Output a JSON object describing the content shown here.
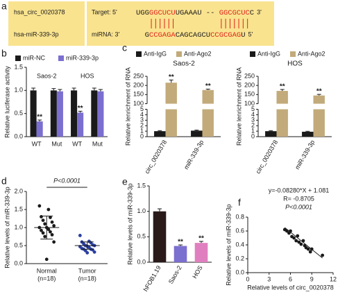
{
  "panel_a": {
    "label": "a",
    "names": [
      "hsa_circ_0020378",
      "hsa-miR-339-3p"
    ],
    "pair_color": "#e0231b",
    "rows": [
      {
        "prefix": "Target: 5'",
        "suffix": "3'",
        "segments": [
          {
            "text": "UGG",
            "color": "#1a1a1a"
          },
          {
            "text": "GGCUCU",
            "color": "#e0231b"
          },
          {
            "text": "UGAAAU -- ",
            "color": "#1a1a1a"
          },
          {
            "text": "GGCGCUC",
            "color": "#e0231b"
          },
          {
            "text": "C",
            "color": "#1a1a1a"
          }
        ]
      },
      {
        "prefix": "miRNA: 3'",
        "suffix": "5'",
        "segments": [
          {
            "text": "G",
            "color": "#1a1a1a"
          },
          {
            "text": "CCGAGA",
            "color": "#e0231b"
          },
          {
            "text": "CAGCAGCU",
            "color": "#1a1a1a"
          },
          {
            "text": "CCGCGAG",
            "color": "#e0231b"
          },
          {
            "text": "U",
            "color": "#1a1a1a"
          }
        ]
      }
    ]
  },
  "chart_data": [
    {
      "panel_label": "b",
      "type": "bar",
      "y_label": "Relative luciferase activity",
      "categories": [
        "WT",
        "Mut",
        "WT",
        "Mut"
      ],
      "groups": [
        "Saos-2",
        "HOS"
      ],
      "series": [
        {
          "name": "miR-NC",
          "color": "#1a1a1a",
          "values": [
            1,
            1,
            1,
            1
          ],
          "errors": [
            0.05,
            0.04,
            0.05,
            0.05
          ]
        },
        {
          "name": "miR-339-3p",
          "color": "#7b6fd0",
          "values": [
            0.33,
            0.98,
            0.52,
            0.98
          ],
          "errors": [
            0.03,
            0.04,
            0.03,
            0.04
          ],
          "annotations": [
            "**",
            null,
            "**",
            null
          ]
        }
      ],
      "ylim": [
        0,
        1.5
      ],
      "yticks": [
        {
          "value": 0,
          "label": "0.0"
        },
        {
          "value": 0.5,
          "label": "0.5"
        },
        {
          "value": 1,
          "label": "1.0"
        },
        {
          "value": 1.5,
          "label": "1.5"
        }
      ],
      "legend": "top"
    },
    {
      "panel_label": "c",
      "type": "bar",
      "title": "Saos-2",
      "y_label": "Relative lenrichment of RNA",
      "categories": [
        "circ_0020378",
        "miR-339-3p"
      ],
      "series": [
        {
          "name": "Anti-IgG",
          "color": "#1a1a1a",
          "values": [
            1,
            1.1
          ],
          "errors": [
            0.1,
            0.1
          ]
        },
        {
          "name": "Anti-Ago2",
          "color": "#c2aa7a",
          "values": [
            215,
            175
          ],
          "errors": [
            15,
            5
          ],
          "annotations": [
            "**",
            "**"
          ]
        }
      ],
      "ylim": [
        0,
        250
      ],
      "axis_break": [
        5,
        100
      ],
      "yticks": [
        0,
        1,
        2,
        3,
        4,
        5,
        100,
        150,
        200,
        250
      ],
      "legend": "top"
    },
    {
      "type": "bar",
      "title": "HOS",
      "y_label": "Relative lenrichment of RNA",
      "categories": [
        "circ_0020378",
        "miR-339-3p"
      ],
      "series": [
        {
          "name": "Anti-IgG",
          "color": "#1a1a1a",
          "values": [
            1,
            0.9
          ],
          "errors": [
            0.1,
            0.08
          ]
        },
        {
          "name": "Anti-Ago2",
          "color": "#c2aa7a",
          "values": [
            170,
            145
          ],
          "errors": [
            8,
            6
          ],
          "annotations": [
            "**",
            "**"
          ]
        }
      ],
      "ylim": [
        0,
        250
      ],
      "axis_break": [
        5,
        100
      ],
      "yticks": [
        0,
        1,
        2,
        3,
        4,
        5,
        100,
        150,
        200,
        250
      ],
      "legend": "top"
    },
    {
      "panel_label": "d",
      "type": "dot",
      "y_label": "Relative levels of miR-339-3p",
      "categories": [
        "Normal",
        "Tumor"
      ],
      "category_notes": [
        "(n=18)",
        "(n=18)"
      ],
      "annotation": "P<0.0001",
      "groups": [
        {
          "color": "#1a1a1a",
          "values": [
            1.6,
            1.5,
            1.3,
            1.28,
            1.2,
            1.15,
            1.1,
            1.05,
            1.0,
            1.0,
            0.95,
            0.92,
            0.88,
            0.85,
            0.8,
            0.75,
            0.6,
            0.12
          ],
          "mean": 1.0,
          "sd": 0.32
        },
        {
          "color": "#2a3fa0",
          "values": [
            0.78,
            0.62,
            0.6,
            0.58,
            0.55,
            0.52,
            0.5,
            0.5,
            0.48,
            0.47,
            0.45,
            0.42,
            0.4,
            0.4,
            0.38,
            0.36,
            0.32,
            0.3
          ],
          "mean": 0.5,
          "sd": 0.1
        }
      ],
      "ylim": [
        0,
        2
      ],
      "yticks": [
        {
          "value": 0,
          "label": "0.0"
        },
        {
          "value": 0.5,
          "label": "0.5"
        },
        {
          "value": 1,
          "label": "1.0"
        },
        {
          "value": 1.5,
          "label": "1.5"
        },
        {
          "value": 2,
          "label": "2.0"
        }
      ]
    },
    {
      "panel_label": "e",
      "type": "bar",
      "y_label": "Relative levels of miR-339-3p",
      "categories": [
        "hFOB1.19",
        "Saos-2",
        "HOS"
      ],
      "values": [
        1.0,
        0.32,
        0.38
      ],
      "errors": [
        0.05,
        0.02,
        0.03
      ],
      "colors": [
        "#2a1a1a",
        "#7b6fd0",
        "#e07fbf"
      ],
      "annotations": [
        null,
        "**",
        "**"
      ],
      "ylim": [
        0,
        1.5
      ],
      "yticks": [
        {
          "value": 0,
          "label": "0.0"
        },
        {
          "value": 0.5,
          "label": "0.5"
        },
        {
          "value": 1,
          "label": "1.0"
        },
        {
          "value": 1.5,
          "label": "1.5"
        }
      ]
    },
    {
      "panel_label": "f",
      "type": "scatter",
      "y_label": "Relative levels of miR-339-3p",
      "x_label": "Relative levels of circ_0020378",
      "annotations": [
        "y=-0.08280*X + 1.081",
        "R= -0.8705",
        "P<0.0001"
      ],
      "fit": {
        "slope": -0.0828,
        "intercept": 1.081
      },
      "x": [
        5.2,
        5.5,
        5.8,
        6.0,
        6.2,
        6.5,
        6.8,
        7.0,
        7.2,
        7.5,
        7.8,
        8.0,
        8.2,
        8.5,
        8.8,
        9.0,
        10.5
      ],
      "y": [
        0.62,
        0.6,
        0.57,
        0.6,
        0.52,
        0.5,
        0.46,
        0.53,
        0.44,
        0.41,
        0.46,
        0.39,
        0.36,
        0.34,
        0.3,
        0.34,
        0.25
      ],
      "color": "#1a1a1a",
      "xlim": [
        0,
        12
      ],
      "xticks": [
        0,
        3,
        6,
        9,
        12
      ],
      "ylim": [
        0,
        0.8
      ],
      "yticks": [
        {
          "value": 0,
          "label": "0.0"
        },
        {
          "value": 0.2,
          "label": "0.2"
        },
        {
          "value": 0.4,
          "label": "0.4"
        },
        {
          "value": 0.6,
          "label": "0.6"
        },
        {
          "value": 0.8,
          "label": "0.8"
        }
      ]
    }
  ]
}
